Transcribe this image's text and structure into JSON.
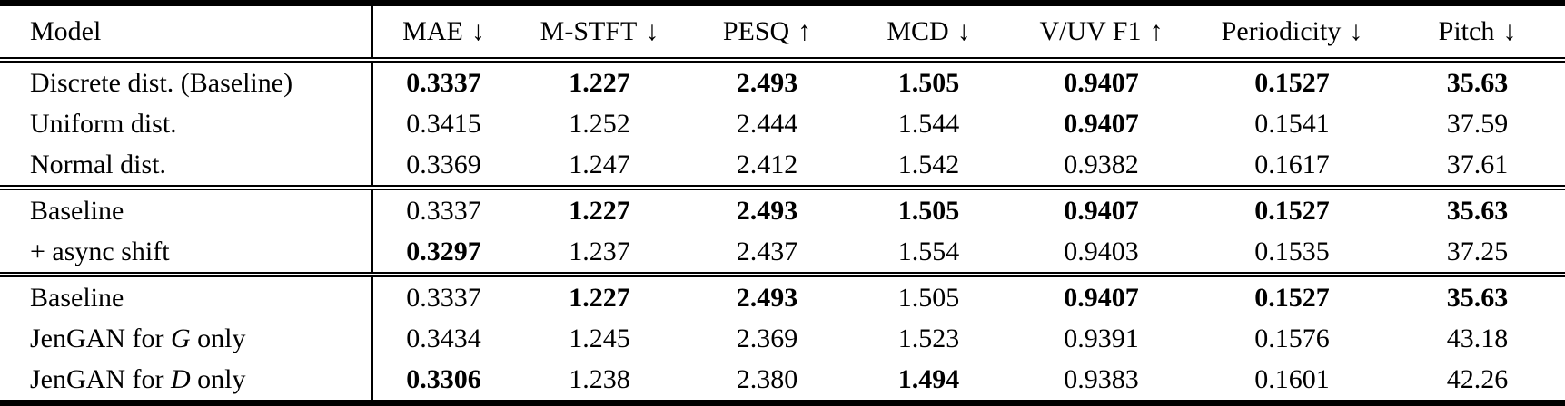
{
  "table": {
    "columns": [
      {
        "label": "Model",
        "arrow": ""
      },
      {
        "label": "MAE",
        "arrow": "↓"
      },
      {
        "label": "M-STFT",
        "arrow": "↓"
      },
      {
        "label": "PESQ",
        "arrow": "↑"
      },
      {
        "label": "MCD",
        "arrow": "↓"
      },
      {
        "label": "V/UV F1",
        "arrow": "↑"
      },
      {
        "label": "Periodicity",
        "arrow": "↓"
      },
      {
        "label": "Pitch",
        "arrow": "↓"
      }
    ],
    "sections": [
      {
        "rows": [
          {
            "model": [
              {
                "text": "Discrete dist. (Baseline)",
                "italic": false
              }
            ],
            "values": [
              {
                "text": "0.3337",
                "bold": true
              },
              {
                "text": "1.227",
                "bold": true
              },
              {
                "text": "2.493",
                "bold": true
              },
              {
                "text": "1.505",
                "bold": true
              },
              {
                "text": "0.9407",
                "bold": true
              },
              {
                "text": "0.1527",
                "bold": true
              },
              {
                "text": "35.63",
                "bold": true
              }
            ]
          },
          {
            "model": [
              {
                "text": "Uniform dist.",
                "italic": false
              }
            ],
            "values": [
              {
                "text": "0.3415",
                "bold": false
              },
              {
                "text": "1.252",
                "bold": false
              },
              {
                "text": "2.444",
                "bold": false
              },
              {
                "text": "1.544",
                "bold": false
              },
              {
                "text": "0.9407",
                "bold": true
              },
              {
                "text": "0.1541",
                "bold": false
              },
              {
                "text": "37.59",
                "bold": false
              }
            ]
          },
          {
            "model": [
              {
                "text": "Normal dist.",
                "italic": false
              }
            ],
            "values": [
              {
                "text": "0.3369",
                "bold": false
              },
              {
                "text": "1.247",
                "bold": false
              },
              {
                "text": "2.412",
                "bold": false
              },
              {
                "text": "1.542",
                "bold": false
              },
              {
                "text": "0.9382",
                "bold": false
              },
              {
                "text": "0.1617",
                "bold": false
              },
              {
                "text": "37.61",
                "bold": false
              }
            ]
          }
        ]
      },
      {
        "rows": [
          {
            "model": [
              {
                "text": "Baseline",
                "italic": false
              }
            ],
            "values": [
              {
                "text": "0.3337",
                "bold": false
              },
              {
                "text": "1.227",
                "bold": true
              },
              {
                "text": "2.493",
                "bold": true
              },
              {
                "text": "1.505",
                "bold": true
              },
              {
                "text": "0.9407",
                "bold": true
              },
              {
                "text": "0.1527",
                "bold": true
              },
              {
                "text": "35.63",
                "bold": true
              }
            ]
          },
          {
            "model": [
              {
                "text": "+ async shift",
                "italic": false
              }
            ],
            "values": [
              {
                "text": "0.3297",
                "bold": true
              },
              {
                "text": "1.237",
                "bold": false
              },
              {
                "text": "2.437",
                "bold": false
              },
              {
                "text": "1.554",
                "bold": false
              },
              {
                "text": "0.9403",
                "bold": false
              },
              {
                "text": "0.1535",
                "bold": false
              },
              {
                "text": "37.25",
                "bold": false
              }
            ]
          }
        ]
      },
      {
        "rows": [
          {
            "model": [
              {
                "text": "Baseline",
                "italic": false
              }
            ],
            "values": [
              {
                "text": "0.3337",
                "bold": false
              },
              {
                "text": "1.227",
                "bold": true
              },
              {
                "text": "2.493",
                "bold": true
              },
              {
                "text": "1.505",
                "bold": false
              },
              {
                "text": "0.9407",
                "bold": true
              },
              {
                "text": "0.1527",
                "bold": true
              },
              {
                "text": "35.63",
                "bold": true
              }
            ]
          },
          {
            "model": [
              {
                "text": "JenGAN for ",
                "italic": false
              },
              {
                "text": "G",
                "italic": true
              },
              {
                "text": " only",
                "italic": false
              }
            ],
            "values": [
              {
                "text": "0.3434",
                "bold": false
              },
              {
                "text": "1.245",
                "bold": false
              },
              {
                "text": "2.369",
                "bold": false
              },
              {
                "text": "1.523",
                "bold": false
              },
              {
                "text": "0.9391",
                "bold": false
              },
              {
                "text": "0.1576",
                "bold": false
              },
              {
                "text": "43.18",
                "bold": false
              }
            ]
          },
          {
            "model": [
              {
                "text": "JenGAN for ",
                "italic": false
              },
              {
                "text": "D",
                "italic": true
              },
              {
                "text": " only",
                "italic": false
              }
            ],
            "values": [
              {
                "text": "0.3306",
                "bold": true
              },
              {
                "text": "1.238",
                "bold": false
              },
              {
                "text": "2.380",
                "bold": false
              },
              {
                "text": "1.494",
                "bold": true
              },
              {
                "text": "0.9383",
                "bold": false
              },
              {
                "text": "0.1601",
                "bold": false
              },
              {
                "text": "42.26",
                "bold": false
              }
            ]
          }
        ]
      }
    ]
  }
}
